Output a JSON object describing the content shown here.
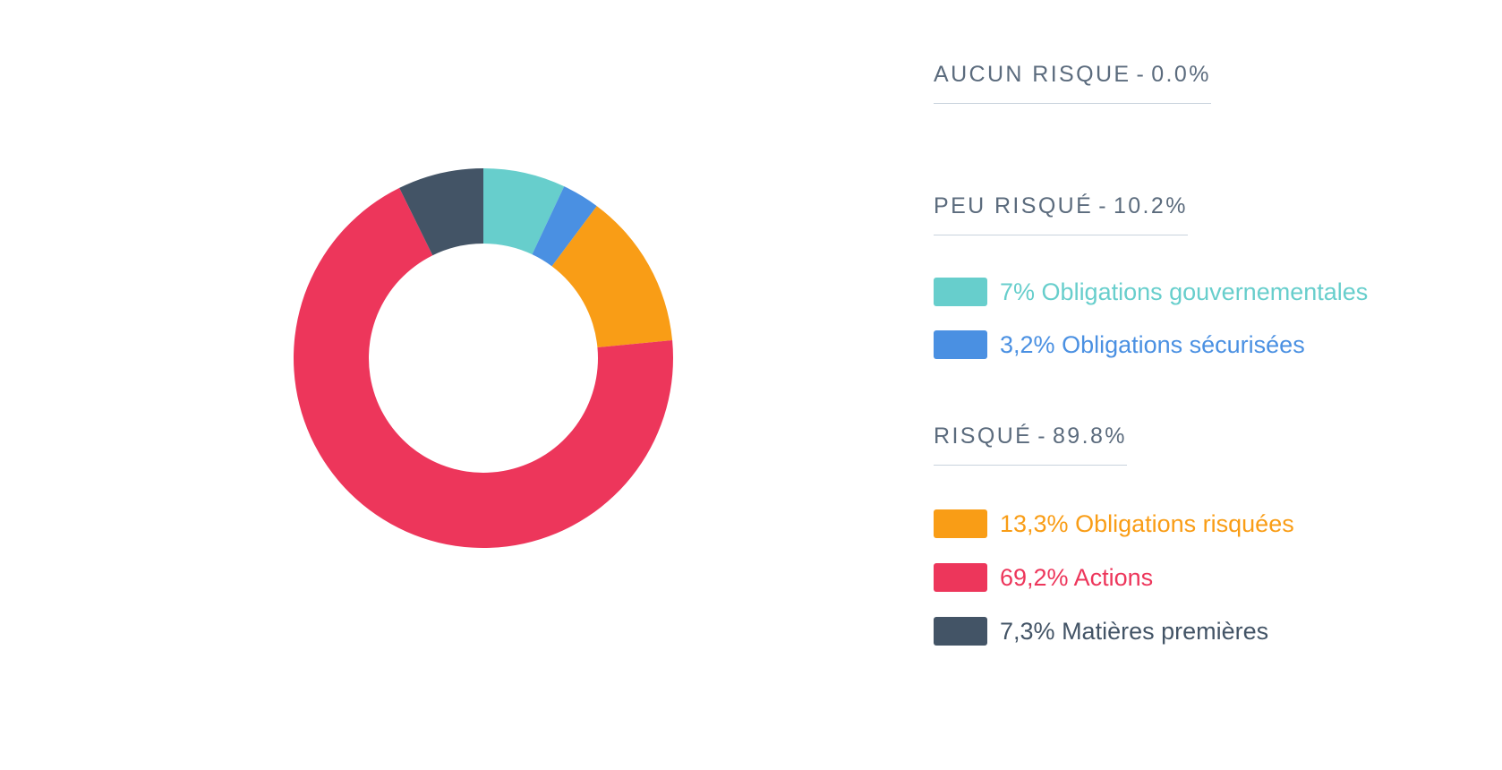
{
  "chart_data": {
    "type": "pie",
    "donut": true,
    "unit": "%",
    "slices": [
      {
        "label": "Obligations gouvernementales",
        "value_text": "7%",
        "value": 7.0,
        "color": "#67cecc",
        "group": "PEU RISQUÉ"
      },
      {
        "label": "Obligations sécurisées",
        "value_text": "3,2%",
        "value": 3.2,
        "color": "#4a90e2",
        "group": "PEU RISQUÉ"
      },
      {
        "label": "Obligations risquées",
        "value_text": "13,3%",
        "value": 13.3,
        "color": "#f99d16",
        "group": "RISQUÉ"
      },
      {
        "label": "Actions",
        "value_text": "69,2%",
        "value": 69.2,
        "color": "#ed365b",
        "group": "RISQUÉ"
      },
      {
        "label": "Matières premières",
        "value_text": "7,3%",
        "value": 7.3,
        "color": "#435466",
        "group": "RISQUÉ"
      }
    ],
    "groups": [
      {
        "name": "AUCUN RISQUE",
        "sep": "-",
        "total_text": "0.0%",
        "total": 0.0,
        "items": []
      },
      {
        "name": "PEU RISQUÉ",
        "sep": "-",
        "total_text": "10.2%",
        "total": 10.2,
        "items": [
          0,
          1
        ]
      },
      {
        "name": "RISQUÉ",
        "sep": "-",
        "total_text": "89.8%",
        "total": 89.8,
        "items": [
          2,
          3,
          4
        ]
      }
    ],
    "legend_position": "right",
    "heading_color": "#5b6b7d",
    "heading_rule_color": "#c9d3dd"
  }
}
